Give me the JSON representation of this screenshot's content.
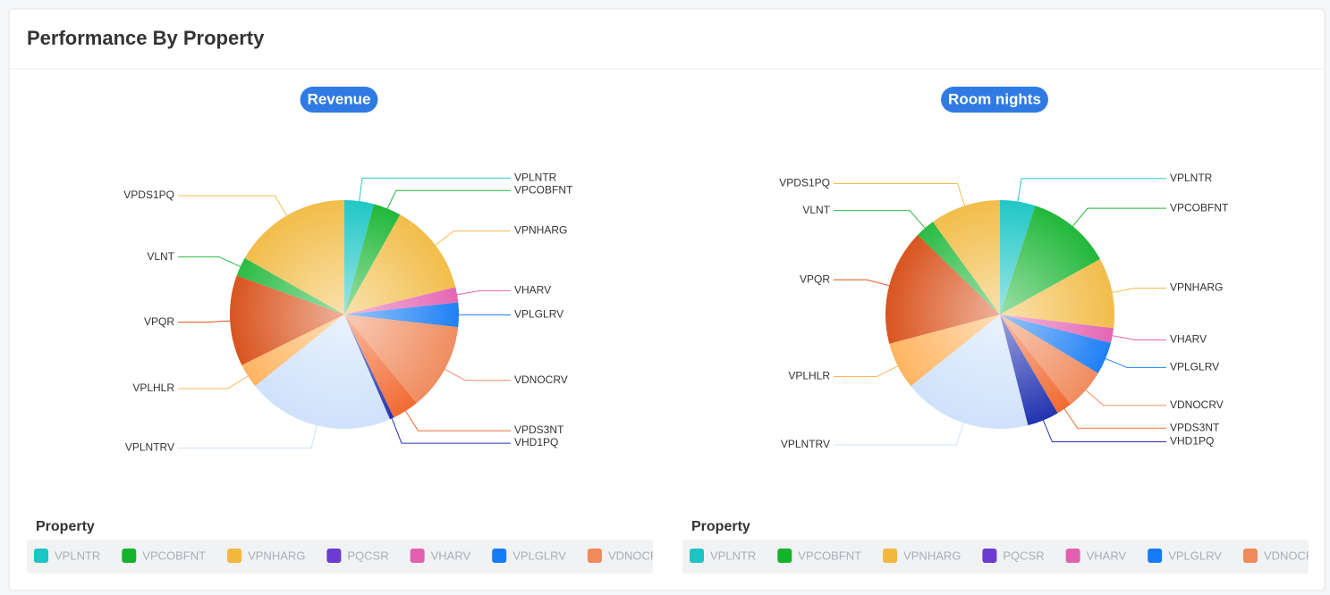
{
  "header": {
    "title": "Performance By Property"
  },
  "chart_data": [
    {
      "type": "pie",
      "title": "Revenue",
      "categories": [
        "VPLNTR",
        "VPCOBFNT",
        "VPNHARG",
        "VHARV",
        "VPLGLRV",
        "VDNOCRV",
        "VPDS3NT",
        "VHD1PQ",
        "VPLNTRV",
        "VPLHLR",
        "VPQR",
        "VLNT",
        "VPDS1PQ"
      ],
      "values": [
        4.2,
        4,
        13.2,
        2.2,
        3.5,
        12.5,
        3.8,
        0.6,
        21,
        3.5,
        13,
        2.7,
        17
      ],
      "colors": [
        "#22c7c7",
        "#21b83a",
        "#f2bd4a",
        "#e466b4",
        "#1f80f5",
        "#f08d60",
        "#f26a32",
        "#2233b0",
        "#cfe2fb",
        "#ffb562",
        "#d9541f",
        "#2bbb44",
        "#f2bd4a"
      ],
      "legend_title": "Property",
      "legend": [
        {
          "name": "VPLNTR",
          "color": "#1cc4c4"
        },
        {
          "name": "VPCOBFNT",
          "color": "#13b42c"
        },
        {
          "name": "VPNHARG",
          "color": "#f2b83e"
        },
        {
          "name": "PQCSR",
          "color": "#6a3ccf"
        },
        {
          "name": "VHARV",
          "color": "#e360b0"
        },
        {
          "name": "VPLGLRV",
          "color": "#157cf5"
        },
        {
          "name": "VDNOCRV",
          "color": "#ef8a5a"
        },
        {
          "name": null,
          "color": "#f25a1a"
        }
      ]
    },
    {
      "type": "pie",
      "title": "Room nights",
      "categories": [
        "VPLNTR",
        "VPCOBFNT",
        "VPNHARG",
        "VHARV",
        "VPLGLRV",
        "VDNOCRV",
        "VPDS3NT",
        "VHD1PQ",
        "VPLNTRV",
        "VPLHLR",
        "VPQR",
        "VLNT",
        "VPDS1PQ"
      ],
      "values": [
        5,
        12,
        10,
        2.1,
        4.6,
        5.8,
        2.2,
        4.5,
        18.2,
        6.7,
        16.4,
        2.8,
        10
      ],
      "colors": [
        "#22c7c7",
        "#21b83a",
        "#f2bd4a",
        "#e466b4",
        "#1f80f5",
        "#f08d60",
        "#f26a32",
        "#2233b0",
        "#cfe2fb",
        "#ffb562",
        "#d9541f",
        "#2bbb44",
        "#f2bd4a"
      ],
      "legend_title": "Property",
      "legend": [
        {
          "name": "VPLNTR",
          "color": "#1cc4c4"
        },
        {
          "name": "VPCOBFNT",
          "color": "#13b42c"
        },
        {
          "name": "VPNHARG",
          "color": "#f2b83e"
        },
        {
          "name": "PQCSR",
          "color": "#6a3ccf"
        },
        {
          "name": "VHARV",
          "color": "#e360b0"
        },
        {
          "name": "VPLGLRV",
          "color": "#157cf5"
        },
        {
          "name": "VDNOCRV",
          "color": "#ef8a5a"
        },
        {
          "name": null,
          "color": "#f25a1a"
        }
      ]
    }
  ]
}
